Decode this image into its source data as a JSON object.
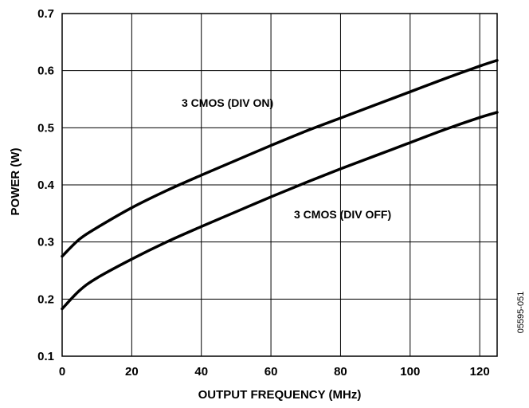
{
  "chart_data": {
    "type": "line",
    "xlabel": "OUTPUT FREQUENCY (MHz)",
    "ylabel": "POWER (W)",
    "xlim": [
      0,
      125
    ],
    "ylim": [
      0.1,
      0.7
    ],
    "x_ticks": [
      0,
      20,
      40,
      60,
      80,
      100,
      120
    ],
    "y_ticks": [
      0.1,
      0.2,
      0.3,
      0.4,
      0.5,
      0.6,
      0.7
    ],
    "x_tick_labels": [
      "0",
      "20",
      "40",
      "60",
      "80",
      "100",
      "120"
    ],
    "y_tick_labels": [
      "0.1",
      "0.2",
      "0.3",
      "0.4",
      "0.5",
      "0.6",
      "0.7"
    ],
    "grid": true,
    "series": [
      {
        "name": "3 CMOS (DIV ON)",
        "x": [
          0,
          5,
          10,
          20,
          30,
          40,
          50,
          60,
          70,
          80,
          90,
          100,
          110,
          120,
          125
        ],
        "values": [
          0.275,
          0.305,
          0.325,
          0.36,
          0.39,
          0.417,
          0.443,
          0.469,
          0.494,
          0.517,
          0.54,
          0.563,
          0.586,
          0.608,
          0.618
        ]
      },
      {
        "name": "3 CMOS (DIV OFF)",
        "x": [
          0,
          5,
          10,
          20,
          30,
          40,
          50,
          60,
          70,
          80,
          90,
          100,
          110,
          120,
          125
        ],
        "values": [
          0.183,
          0.215,
          0.237,
          0.27,
          0.3,
          0.327,
          0.353,
          0.379,
          0.404,
          0.428,
          0.451,
          0.474,
          0.497,
          0.518,
          0.527
        ]
      }
    ],
    "figure_id": "05595-051"
  }
}
